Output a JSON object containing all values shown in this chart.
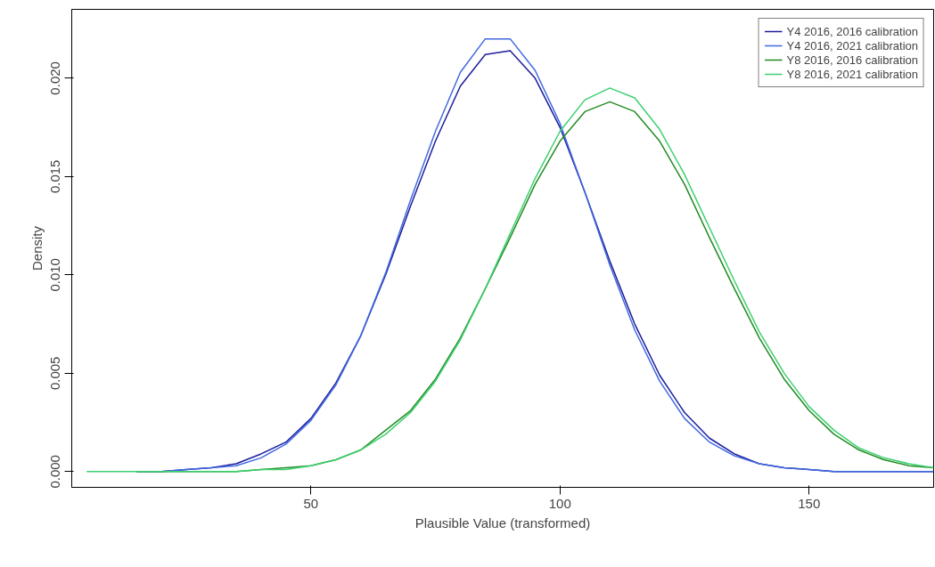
{
  "chart_data": {
    "type": "line",
    "xlabel": "Plausible Value (transformed)",
    "ylabel": "Density",
    "x": [
      5,
      10,
      15,
      20,
      25,
      30,
      35,
      40,
      45,
      50,
      55,
      60,
      65,
      70,
      75,
      80,
      85,
      90,
      95,
      100,
      105,
      110,
      115,
      120,
      125,
      130,
      135,
      140,
      145,
      150,
      155,
      160,
      165,
      170,
      175
    ],
    "series": [
      {
        "name": "Y4 2016, 2016 calibration",
        "color": "#1c1c9c",
        "values": [
          null,
          null,
          0,
          0,
          0.0001,
          0.0002,
          0.0004,
          0.0009,
          0.0015,
          0.0027,
          0.0045,
          0.0069,
          0.01,
          0.0135,
          0.0168,
          0.0196,
          0.0212,
          0.0214,
          0.02,
          0.0175,
          0.0142,
          0.0107,
          0.0075,
          0.0049,
          0.003,
          0.0017,
          0.0009,
          0.0004,
          0.0002,
          0.0001,
          0,
          0,
          0,
          0,
          0
        ]
      },
      {
        "name": "Y4 2016, 2021 calibration",
        "color": "#4169e1",
        "values": [
          null,
          null,
          0,
          0,
          0.0001,
          0.0002,
          0.0003,
          0.0007,
          0.0014,
          0.0026,
          0.0044,
          0.0069,
          0.0101,
          0.0138,
          0.0173,
          0.0203,
          0.022,
          0.022,
          0.0204,
          0.0177,
          0.0142,
          0.0105,
          0.0072,
          0.0046,
          0.0027,
          0.0015,
          0.0008,
          0.0004,
          0.0002,
          0.0001,
          0,
          0,
          0,
          0,
          0
        ]
      },
      {
        "name": "Y8 2016, 2016 calibration",
        "color": "#228b22",
        "values": [
          null,
          null,
          0,
          0,
          0,
          0,
          0,
          0.0001,
          0.0002,
          0.0003,
          0.0006,
          0.0011,
          0.0021,
          0.0031,
          0.0047,
          0.0068,
          0.0093,
          0.0119,
          0.0146,
          0.0168,
          0.0183,
          0.0188,
          0.0183,
          0.0168,
          0.0146,
          0.0119,
          0.0093,
          0.0068,
          0.0047,
          0.0031,
          0.0019,
          0.0011,
          0.0006,
          0.0003,
          0.0002
        ]
      },
      {
        "name": "Y8 2016, 2021 calibration",
        "color": "#3cd070",
        "values": [
          0,
          0,
          0,
          0,
          0,
          0,
          0,
          0.0001,
          0.0001,
          0.0003,
          0.0006,
          0.0011,
          0.0019,
          0.003,
          0.0046,
          0.0067,
          0.0093,
          0.0121,
          0.0149,
          0.0173,
          0.0189,
          0.0195,
          0.019,
          0.0174,
          0.0151,
          0.0124,
          0.0097,
          0.0071,
          0.005,
          0.0033,
          0.0021,
          0.0012,
          0.0007,
          0.0004,
          0.0002
        ]
      }
    ],
    "xlim": [
      2,
      175
    ],
    "xticks": [
      50,
      100,
      150
    ],
    "ylim": [
      -0.0008,
      0.0235
    ],
    "yticks": [
      {
        "value": 0,
        "label": "0.000"
      },
      {
        "value": 0.005,
        "label": "0.005"
      },
      {
        "value": 0.01,
        "label": "0.010"
      },
      {
        "value": 0.015,
        "label": "0.015"
      },
      {
        "value": 0.02,
        "label": "0.020"
      }
    ],
    "grid": false,
    "legend": "top right",
    "line_style": "solid",
    "marker": "none"
  }
}
